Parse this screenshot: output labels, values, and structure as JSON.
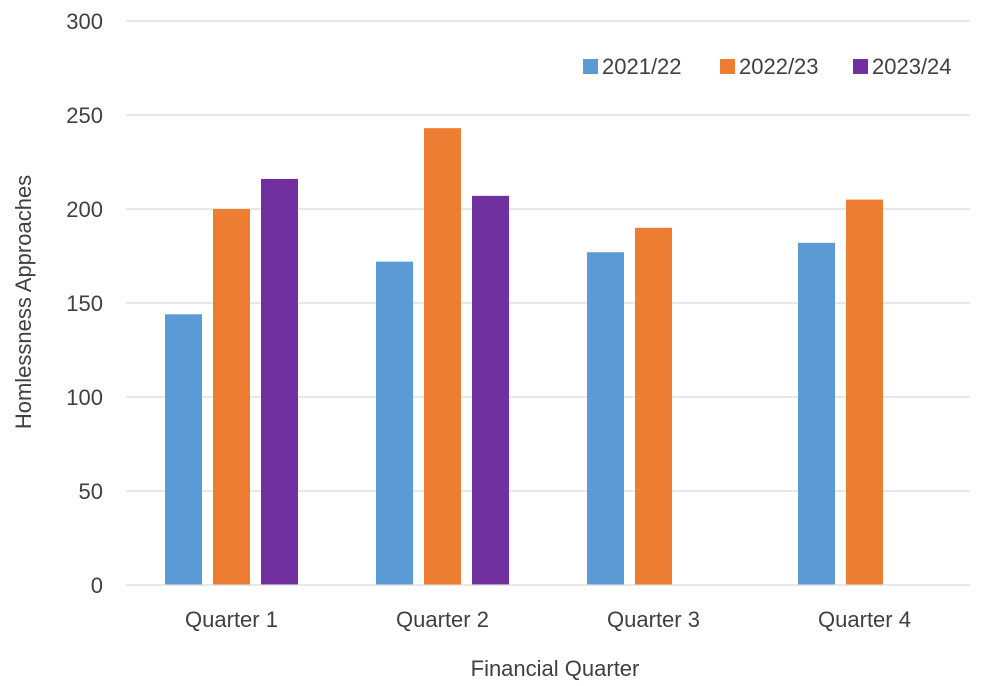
{
  "chart_data": {
    "type": "bar",
    "categories": [
      "Quarter 1",
      "Quarter 2",
      "Quarter 3",
      "Quarter 4"
    ],
    "series": [
      {
        "name": "2021/22",
        "color": "#5b9bd5",
        "values": [
          144,
          172,
          177,
          182
        ]
      },
      {
        "name": "2022/23",
        "color": "#ed7d31",
        "values": [
          200,
          243,
          190,
          205
        ]
      },
      {
        "name": "2023/24",
        "color": "#7030a0",
        "values": [
          216,
          207,
          null,
          null
        ]
      }
    ],
    "xlabel": "Financial Quarter",
    "ylabel": "Homlessness Approaches",
    "ylim": [
      0,
      300
    ],
    "yticks": [
      0,
      50,
      100,
      150,
      200,
      250,
      300
    ],
    "grid": true,
    "legend_position": "top-right"
  }
}
